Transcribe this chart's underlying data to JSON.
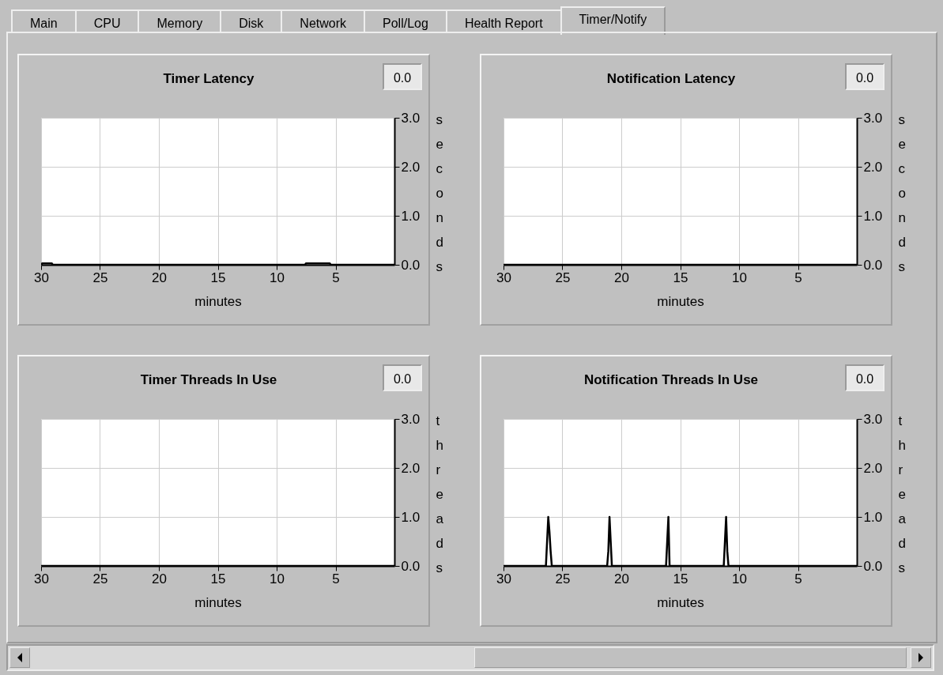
{
  "chart_data": [
    {
      "type": "line",
      "title": "Timer Latency",
      "xlabel": "minutes",
      "ylabel": "seconds",
      "annotations": [
        "Main",
        "CPU",
        "Memory",
        "Disk",
        "Network",
        "Poll/Log",
        "Health Report",
        "Timer/Notify",
        "0.0"
      ],
      "xlim": [
        30,
        0
      ],
      "xticks": [
        30,
        25,
        20,
        15,
        10,
        5
      ],
      "ylim": [
        0,
        3
      ],
      "yticks": [
        {
          "value": 0,
          "label": "0.0"
        },
        {
          "value": 1,
          "label": "1.0"
        },
        {
          "value": 2,
          "label": "2.0"
        },
        {
          "value": 3,
          "label": "3.0"
        }
      ],
      "grid": true,
      "marker": "none",
      "series": [
        {
          "color": "#000000",
          "x": [
            30,
            29.9,
            29.1,
            29,
            7.6,
            7.5,
            5.5,
            5.4,
            0
          ],
          "values": [
            0,
            0.03,
            0.03,
            0,
            0,
            0.03,
            0.03,
            0,
            0
          ]
        }
      ]
    },
    {
      "type": "line",
      "title": "Notification Latency",
      "xlabel": "minutes",
      "ylabel": "seconds",
      "annotations": [
        "0.0"
      ],
      "xlim": [
        30,
        0
      ],
      "xticks": [
        30,
        25,
        20,
        15,
        10,
        5
      ],
      "ylim": [
        0,
        3
      ],
      "yticks": [
        {
          "value": 0,
          "label": "0.0"
        },
        {
          "value": 1,
          "label": "1.0"
        },
        {
          "value": 2,
          "label": "2.0"
        },
        {
          "value": 3,
          "label": "3.0"
        }
      ],
      "grid": true,
      "marker": "none",
      "series": [
        {
          "color": "#000000",
          "x": [
            30,
            0
          ],
          "values": [
            0,
            0
          ]
        }
      ]
    },
    {
      "type": "line",
      "title": "Timer Threads In Use",
      "xlabel": "minutes",
      "ylabel": "threads",
      "annotations": [
        "0.0"
      ],
      "xlim": [
        30,
        0
      ],
      "xticks": [
        30,
        25,
        20,
        15,
        10,
        5
      ],
      "ylim": [
        0,
        3
      ],
      "yticks": [
        {
          "value": 0,
          "label": "0.0"
        },
        {
          "value": 1,
          "label": "1.0"
        },
        {
          "value": 2,
          "label": "2.0"
        },
        {
          "value": 3,
          "label": "3.0"
        }
      ],
      "grid": true,
      "marker": "none",
      "series": [
        {
          "color": "#000000",
          "x": [
            30,
            0
          ],
          "values": [
            0,
            0
          ]
        }
      ]
    },
    {
      "type": "line",
      "title": "Notification Threads In Use",
      "xlabel": "minutes",
      "ylabel": "threads",
      "annotations": [
        "0.0"
      ],
      "xlim": [
        30,
        0
      ],
      "xticks": [
        30,
        25,
        20,
        15,
        10,
        5
      ],
      "ylim": [
        0,
        3
      ],
      "yticks": [
        {
          "value": 0,
          "label": "0.0"
        },
        {
          "value": 1,
          "label": "1.0"
        },
        {
          "value": 2,
          "label": "2.0"
        },
        {
          "value": 3,
          "label": "3.0"
        }
      ],
      "grid": true,
      "marker": "none",
      "series": [
        {
          "color": "#000000",
          "x": [
            30,
            26.4,
            26.3,
            26.2,
            26.1,
            26.0,
            25.9,
            21.2,
            21.1,
            21.0,
            20.9,
            20.8,
            16.2,
            16.1,
            16.0,
            15.9,
            11.3,
            11.2,
            11.1,
            11.0,
            10.9,
            0
          ],
          "values": [
            0,
            0,
            0.5,
            1,
            0.7,
            0.3,
            0,
            0,
            0.3,
            1,
            0.5,
            0,
            0,
            0.5,
            1,
            0,
            0,
            0.5,
            1,
            0.3,
            0,
            0
          ]
        }
      ]
    }
  ]
}
